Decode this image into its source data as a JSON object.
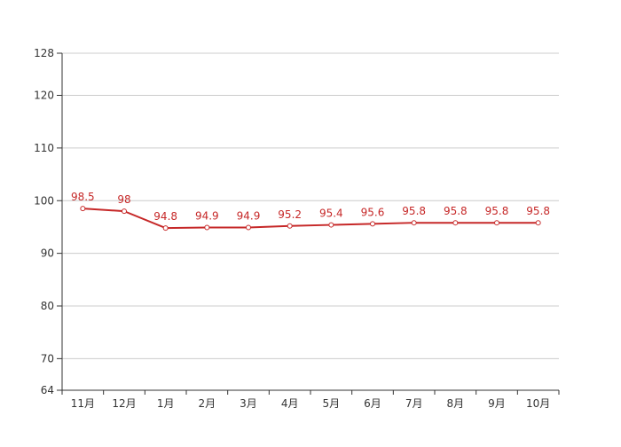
{
  "chart_data": {
    "type": "line",
    "categories": [
      "11月",
      "12月",
      "1月",
      "2月",
      "3月",
      "4月",
      "5月",
      "6月",
      "7月",
      "8月",
      "9月",
      "10月"
    ],
    "series": [
      {
        "values": [
          98.5,
          98,
          94.8,
          94.9,
          94.9,
          95.2,
          95.4,
          95.6,
          95.8,
          95.8,
          95.8,
          95.8
        ]
      }
    ],
    "ylim": [
      64,
      128
    ],
    "yticks": [
      64,
      70,
      80,
      90,
      100,
      110,
      120,
      128
    ],
    "grid": true,
    "legend": "none",
    "title": "",
    "xlabel": "",
    "ylabel": "",
    "colors": {
      "line": "#c62828",
      "grid": "#cccccc",
      "axis": "#333333"
    }
  }
}
